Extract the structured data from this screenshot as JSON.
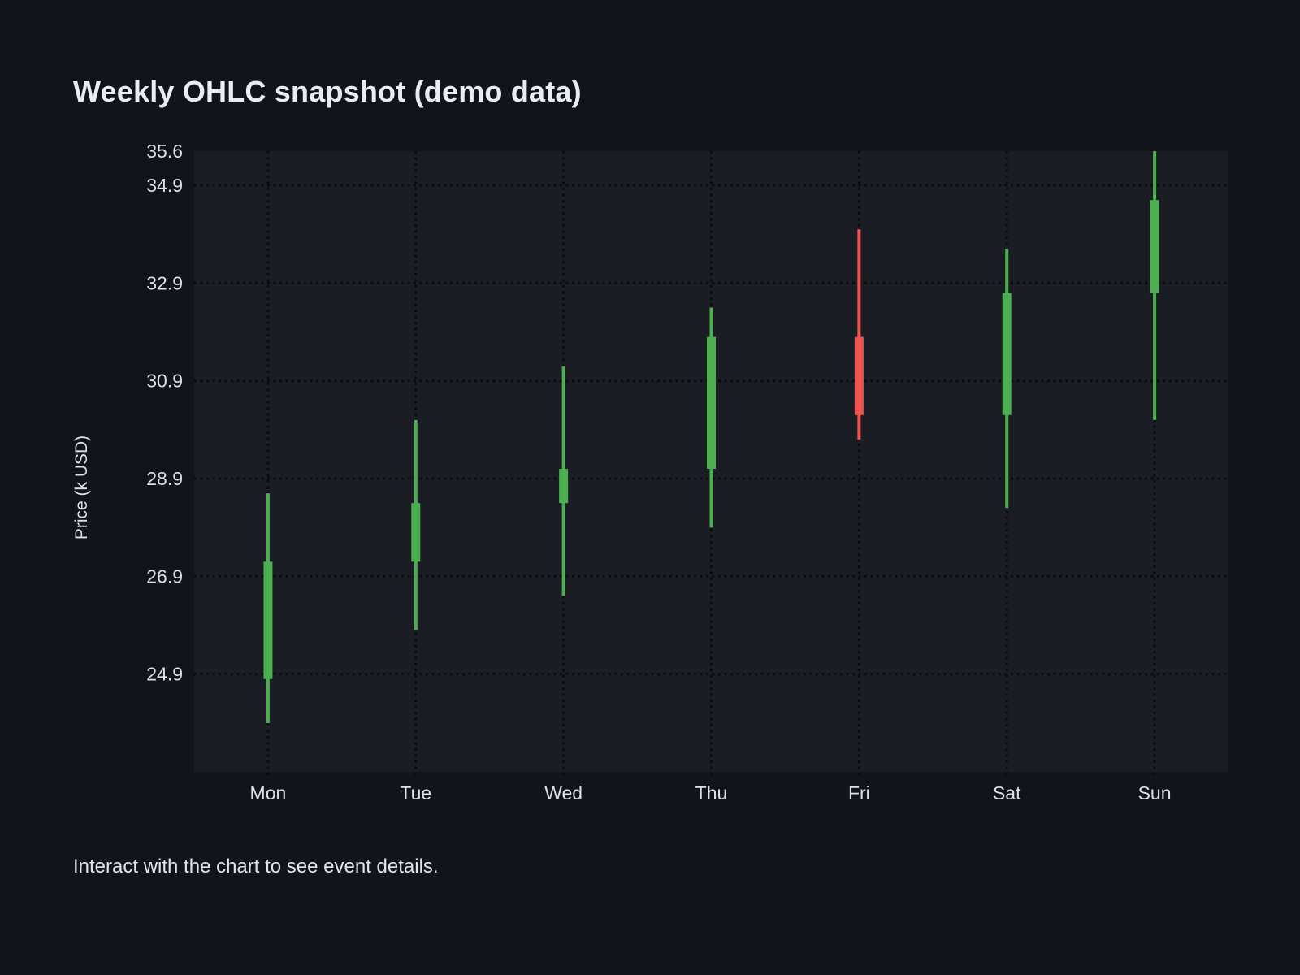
{
  "page": {
    "caption": "Interact with the chart to see event details."
  },
  "chart_data": {
    "type": "candlestick",
    "title": "Weekly OHLC snapshot (demo data)",
    "xlabel": "",
    "ylabel": "Price (k USD)",
    "categories": [
      "Mon",
      "Tue",
      "Wed",
      "Thu",
      "Fri",
      "Sat",
      "Sun"
    ],
    "series": [
      {
        "name": "Weekly OHLC",
        "points": [
          {
            "day": "Mon",
            "open": 24.8,
            "high": 28.6,
            "low": 23.9,
            "close": 27.2,
            "direction": "up"
          },
          {
            "day": "Tue",
            "open": 27.2,
            "high": 30.1,
            "low": 25.8,
            "close": 28.4,
            "direction": "up"
          },
          {
            "day": "Wed",
            "open": 28.4,
            "high": 31.2,
            "low": 26.5,
            "close": 29.1,
            "direction": "up"
          },
          {
            "day": "Thu",
            "open": 29.1,
            "high": 32.4,
            "low": 27.9,
            "close": 31.8,
            "direction": "up"
          },
          {
            "day": "Fri",
            "open": 31.8,
            "high": 34.0,
            "low": 29.7,
            "close": 30.2,
            "direction": "down"
          },
          {
            "day": "Sat",
            "open": 30.2,
            "high": 33.6,
            "low": 28.3,
            "close": 32.7,
            "direction": "up"
          },
          {
            "day": "Sun",
            "open": 32.7,
            "high": 35.6,
            "low": 30.1,
            "close": 34.6,
            "direction": "up"
          }
        ]
      }
    ],
    "yticks": [
      35.6,
      34.9,
      32.9,
      30.9,
      28.9,
      26.9,
      24.9
    ],
    "ylim": [
      22.9,
      35.6
    ],
    "grid": "dotted-black-both-axes",
    "legend": "none",
    "colors": {
      "up": "#4caf50",
      "down": "#ef5350",
      "page_background": "#121419",
      "plot_background": "#1a1d23",
      "gridline": "#0a0b0e",
      "tick_text": "#dde1e8",
      "title_text": "#e9ecf1"
    }
  }
}
